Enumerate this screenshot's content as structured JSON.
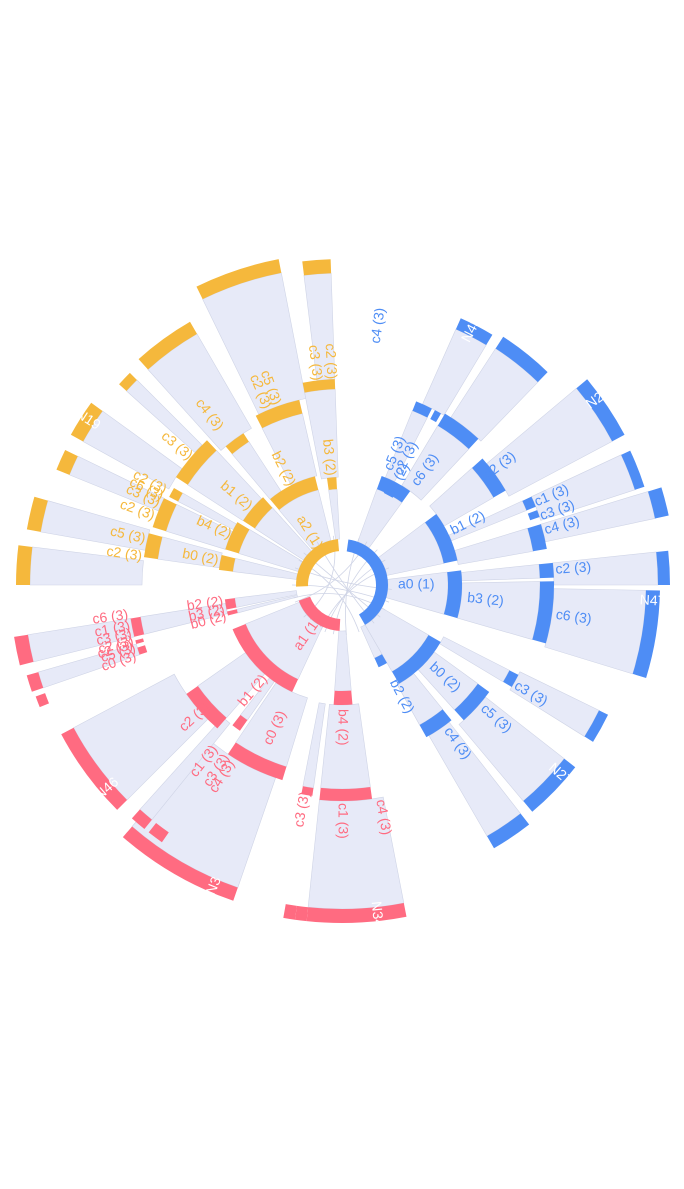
{
  "colors": {
    "a0": "#4e8df5",
    "a1": "#ff6b81",
    "a2": "#f5b83c",
    "band": "#e7eaf8",
    "band_line": "#cfd4e6"
  },
  "groups": [
    {
      "id": "a0",
      "color": "#4e8df5",
      "label": "a0 (1)",
      "start": 0,
      "end": 148,
      "mid": [
        {
          "id": "b4",
          "label": "b4 (2)",
          "start": 0,
          "end": 40,
          "leaves": [
            {
              "label": "c5 (3)",
              "start": 0,
              "end": 11
            },
            {
              "label": "c2 (3)",
              "start": 12,
              "end": 14
            },
            {
              "label": "c6 (3)",
              "start": 15,
              "end": 40
            }
          ]
        },
        {
          "id": "n43",
          "label": "",
          "start": 0,
          "end": 40,
          "outer": true,
          "outerLabel": "N43"
        },
        {
          "id": "b1",
          "label": "b1 (2)",
          "start": 44,
          "end": 88,
          "leaves": [
            {
              "label": "c2 (3)",
              "start": 44,
              "end": 66
            },
            {
              "label": "c1 (3)",
              "start": 67,
              "end": 73
            },
            {
              "label": "c3 (3)",
              "start": 74,
              "end": 76
            },
            {
              "label": "c4 (3)",
              "start": 77,
              "end": 88
            }
          ]
        },
        {
          "id": "b3",
          "label": "b3 (2)",
          "start": 92,
          "end": 118,
          "leaves": [
            {
              "label": "c2 (3)",
              "start": 92,
              "end": 96
            },
            {
              "label": "c6 (3)",
              "start": 97,
              "end": 118
            }
          ]
        },
        {
          "id": "b0",
          "label": "b0 (2)",
          "start": 120,
          "end": 148,
          "leaves": [
            {
              "label": "c3 (3)",
              "start": 120,
              "end": 124
            },
            {
              "label": "c5 (3)",
              "start": 125,
              "end": 135
            },
            {
              "label": "c4 (3)",
              "start": 136,
              "end": 148
            }
          ]
        }
      ]
    }
  ],
  "labels": {
    "a0": "a0 (1)",
    "a1": "a1 (1)",
    "a2": "a2 (1)",
    "blue": [
      "b4 (2)",
      "b1 (2)",
      "b3 (2)",
      "b0 (2)",
      "b2 (2)",
      "c5 (3)",
      "c2 (3)",
      "c6 (3)",
      "c2 (3)",
      "c1 (3)",
      "c3 (3)",
      "c4 (3)",
      "c2 (3)",
      "c6 (3)",
      "c3 (3)",
      "c5 (3)",
      "c4 (3)",
      "c4 (3)"
    ],
    "blue_outer": [
      "N43",
      "N2",
      "N47",
      "N27"
    ],
    "red": [
      "b1 (2)",
      "b4 (2)",
      "b2 (2)",
      "b3 (2)",
      "b0 (2)",
      "c6 (3)",
      "c1 (3)",
      "c3 (3)",
      "c2 (3)",
      "c5 (3)",
      "c0 (3)",
      "c2 (3)",
      "c1 (3)",
      "c4 (3)",
      "c3 (3)",
      "c0 (3)",
      "c2 (3)",
      "c3 (3)",
      "c1 (3)",
      "c4 (3)"
    ],
    "red_outer": [
      "N46",
      "N3",
      "N34"
    ],
    "yellow": [
      "b3 (2)",
      "b2 (2)",
      "b1 (2)",
      "b4 (2)",
      "b0 (2)",
      "c2 (3)",
      "c3 (3)",
      "c5 (3)",
      "c2 (3)",
      "c4 (3)",
      "c3 (3)",
      "c2 (3)",
      "c6 (3)",
      "c3 (3)",
      "c2 (3)",
      "c5 (3)",
      "c2 (3)"
    ],
    "yellow_outer": [
      "N19"
    ]
  }
}
